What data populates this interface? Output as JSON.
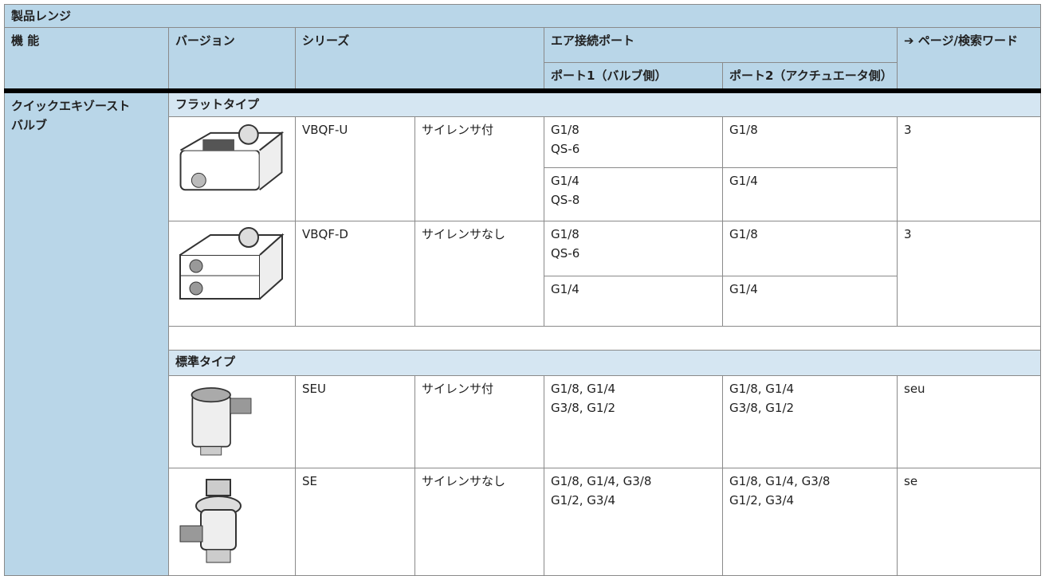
{
  "header": {
    "title": "製品レンジ"
  },
  "table": {
    "columns": [
      "機 能",
      "バージョン",
      "シリーズ",
      "エア接続ポート",
      "➔ ページ/検索ワード"
    ],
    "subcolumns": [
      "ポート1（バルブ側）",
      "ポート2（アクチュエータ側）"
    ],
    "function": [
      "クイックエキゾースト",
      "バルブ"
    ],
    "groups": [
      {
        "name": "フラットタイプ",
        "products": [
          {
            "series": "VBQF-U",
            "description": "サイレンサ付",
            "page": "3",
            "connections": [
              {
                "port1": [
                  "G1/8",
                  "QS-6"
                ],
                "port2": [
                  "G1/8"
                ]
              },
              {
                "port1": [
                  "G1/4",
                  "QS-8"
                ],
                "port2": [
                  "G1/4"
                ]
              }
            ]
          },
          {
            "series": "VBQF-D",
            "description": "サイレンサなし",
            "page": "3",
            "connections": [
              {
                "port1": [
                  "G1/8",
                  "QS-6"
                ],
                "port2": [
                  "G1/8"
                ]
              },
              {
                "port1": [
                  "G1/4"
                ],
                "port2": [
                  "G1/4"
                ]
              }
            ]
          }
        ]
      },
      {
        "name": "標準タイプ",
        "products": [
          {
            "series": "SEU",
            "description": "サイレンサ付",
            "page": "seu",
            "connections": [
              {
                "port1": [
                  "G1/8, G1/4",
                  "G3/8, G1/2"
                ],
                "port2": [
                  "G1/8, G1/4",
                  "G3/8, G1/2"
                ]
              }
            ]
          },
          {
            "series": "SE",
            "description": "サイレンサなし",
            "page": "se",
            "connections": [
              {
                "port1": [
                  "G1/8, G1/4, G3/8",
                  "G1/2, G3/4"
                ],
                "port2": [
                  "G1/8, G1/4, G3/8",
                  "G1/2, G3/4"
                ]
              }
            ]
          }
        ]
      }
    ]
  }
}
